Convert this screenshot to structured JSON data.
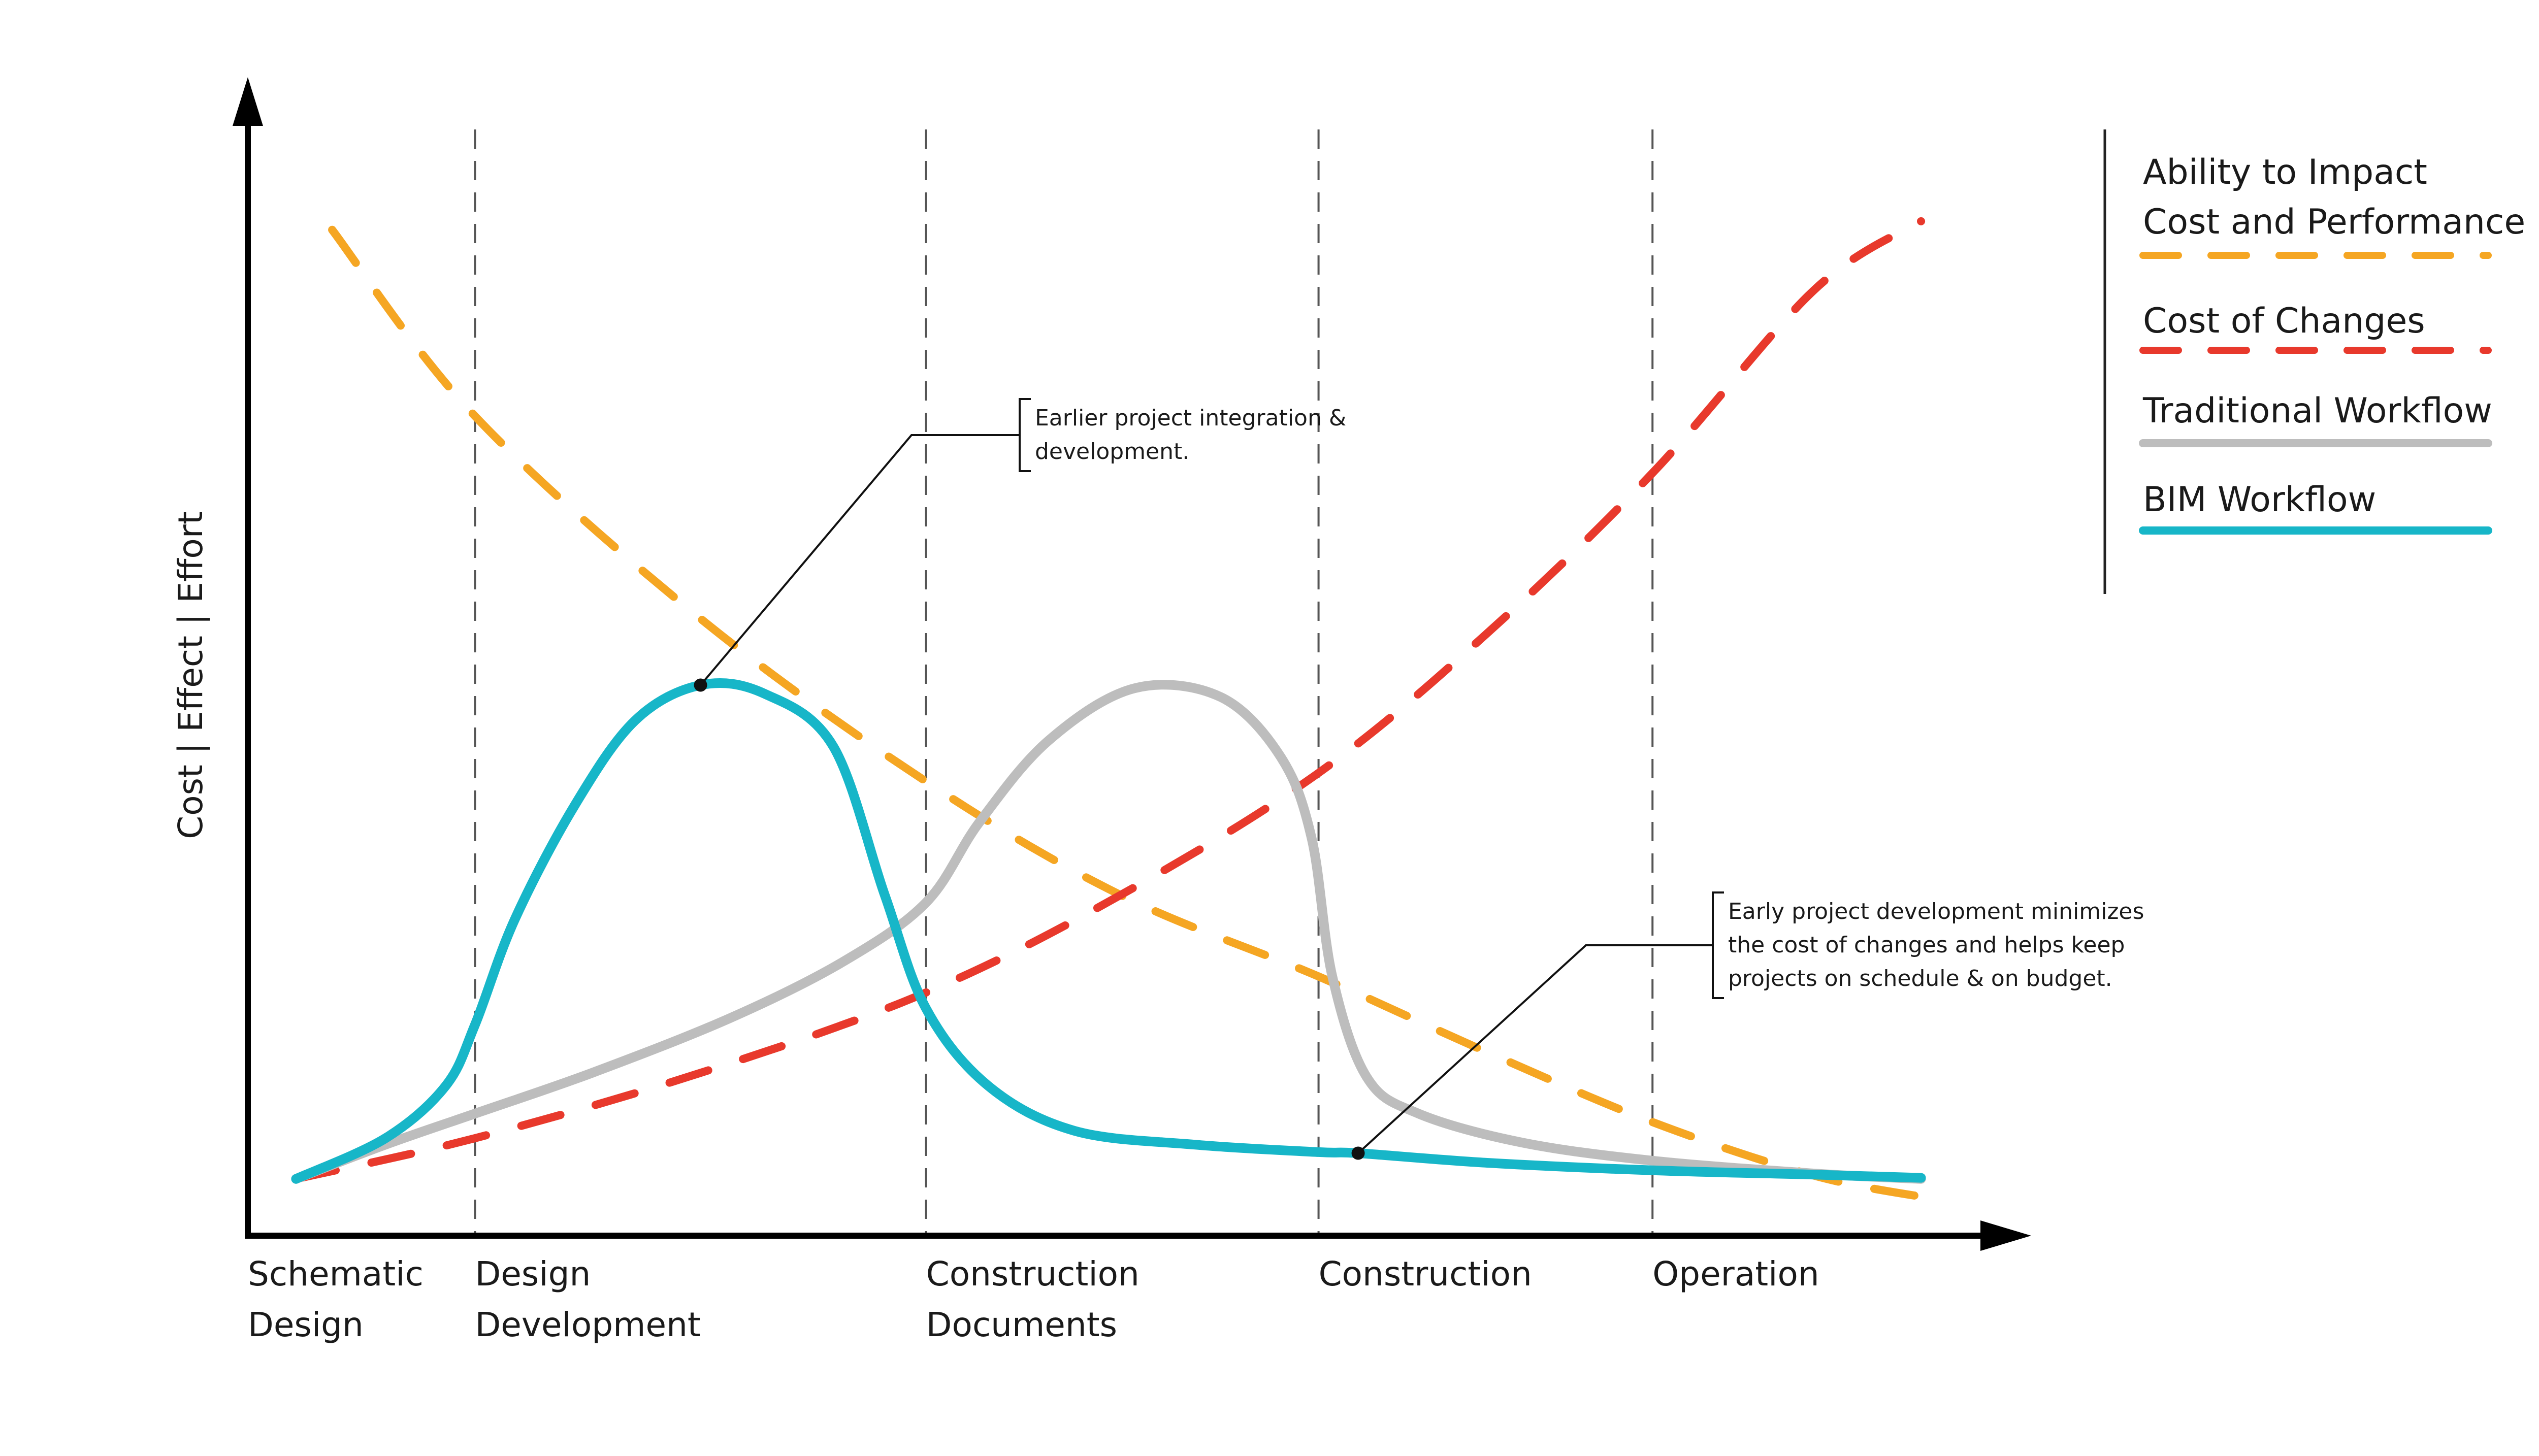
{
  "chart_data": {
    "type": "line",
    "title": "",
    "ylabel": "Cost | Effect | Effort",
    "xlabel": "",
    "xlim": [
      0,
      100
    ],
    "ylim": [
      0,
      100
    ],
    "grid": false,
    "legend_position": "right",
    "phases": [
      {
        "lines": [
          "Schematic",
          "Design"
        ],
        "start": 0
      },
      {
        "lines": [
          "Design",
          "Development"
        ],
        "start": 13.2
      },
      {
        "lines": [
          "Construction",
          "Documents"
        ],
        "start": 39.4
      },
      {
        "lines": [
          "Construction"
        ],
        "start": 62.2
      },
      {
        "lines": [
          "Operation"
        ],
        "start": 81.6
      }
    ],
    "annotations": [
      {
        "lines": [
          "Earlier project integration &",
          "development."
        ],
        "series": "BIM Workflow",
        "x": 26.3,
        "y": 51.4
      },
      {
        "lines": [
          "Early project development minimizes",
          "the cost of changes and helps keep",
          "projects on schedule & on budget."
        ],
        "series": "BIM Workflow",
        "x": 64.5,
        "y": 7.7
      }
    ],
    "series": [
      {
        "name": "Ability to Impact Cost and Performance",
        "legend_lines": [
          "Ability to Impact",
          "Cost and Performance"
        ],
        "color": "#F5A623",
        "style": "dashed",
        "points": [
          [
            4.9,
            93.9
          ],
          [
            13.2,
            76.5
          ],
          [
            26.3,
            57.6
          ],
          [
            39.4,
            42.4
          ],
          [
            50.7,
            31.8
          ],
          [
            62.2,
            24.2
          ],
          [
            71.9,
            17.2
          ],
          [
            81.6,
            10.6
          ],
          [
            91,
            5.6
          ],
          [
            98.1,
            3.4
          ]
        ]
      },
      {
        "name": "Cost of Changes",
        "color": "#E8392C",
        "style": "dashed",
        "points": [
          [
            2.8,
            5.3
          ],
          [
            13.2,
            9.1
          ],
          [
            26.3,
            15.2
          ],
          [
            39.4,
            22.7
          ],
          [
            50.7,
            31.8
          ],
          [
            62.2,
            43.2
          ],
          [
            71.9,
            56.1
          ],
          [
            81.6,
            71.2
          ],
          [
            91,
            88.3
          ],
          [
            97.2,
            94.7
          ]
        ]
      },
      {
        "name": "Traditional Workflow",
        "color": "#BDBDBD",
        "style": "solid",
        "points": [
          [
            2.8,
            5.3
          ],
          [
            8,
            8.5
          ],
          [
            13.2,
            11.4
          ],
          [
            20,
            15.2
          ],
          [
            28,
            20.3
          ],
          [
            34.5,
            25.5
          ],
          [
            39.4,
            31.1
          ],
          [
            42.5,
            38.6
          ],
          [
            46.5,
            46.2
          ],
          [
            51.5,
            51.1
          ],
          [
            56.5,
            50.3
          ],
          [
            60,
            44.7
          ],
          [
            61.8,
            37.1
          ],
          [
            63,
            24.2
          ],
          [
            65,
            14.8
          ],
          [
            68,
            11.4
          ],
          [
            74,
            8.7
          ],
          [
            81.6,
            7.0
          ],
          [
            91,
            5.8
          ],
          [
            97.2,
            5.3
          ]
        ]
      },
      {
        "name": "BIM Workflow",
        "color": "#17B6C8",
        "style": "solid",
        "points": [
          [
            2.8,
            5.3
          ],
          [
            8,
            9.1
          ],
          [
            11.5,
            14.0
          ],
          [
            13.2,
            19.7
          ],
          [
            15.5,
            29.5
          ],
          [
            19,
            40.2
          ],
          [
            22.5,
            48.1
          ],
          [
            26.3,
            51.4
          ],
          [
            30,
            50.6
          ],
          [
            34,
            45.7
          ],
          [
            37,
            31.8
          ],
          [
            39.4,
            21.2
          ],
          [
            43,
            14.0
          ],
          [
            48,
            9.8
          ],
          [
            55,
            8.5
          ],
          [
            62.2,
            7.8
          ],
          [
            64.5,
            7.7
          ],
          [
            72,
            6.8
          ],
          [
            81.6,
            6.1
          ],
          [
            91,
            5.7
          ],
          [
            97.2,
            5.4
          ]
        ]
      }
    ]
  }
}
